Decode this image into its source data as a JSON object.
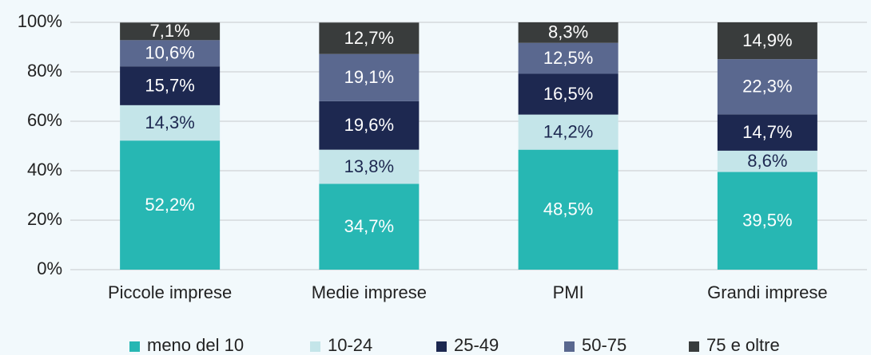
{
  "chart_data": {
    "type": "stacked_bar",
    "categories": [
      "Piccole imprese",
      "Medie imprese",
      "PMI",
      "Grandi imprese"
    ],
    "series": [
      {
        "name": "meno del 10",
        "color": "#27b7b3",
        "values": [
          52.2,
          34.7,
          48.5,
          39.5
        ],
        "value_labels": [
          "52,2%",
          "34,7%",
          "48,5%",
          "39,5%"
        ]
      },
      {
        "name": "10-24",
        "color": "#c4e5e9",
        "values": [
          14.3,
          13.8,
          14.2,
          8.6
        ],
        "value_labels": [
          "14,3%",
          "13,8%",
          "14,2%",
          "8,6%"
        ]
      },
      {
        "name": "25-49",
        "color": "#1d2850",
        "values": [
          15.7,
          19.6,
          16.5,
          14.7
        ],
        "value_labels": [
          "15,7%",
          "19,6%",
          "16,5%",
          "14,7%"
        ]
      },
      {
        "name": "50-75",
        "color": "#5a688f",
        "values": [
          10.6,
          19.1,
          12.5,
          22.3
        ],
        "value_labels": [
          "10,6%",
          "19,1%",
          "12,5%",
          "22,3%"
        ]
      },
      {
        "name": "75 e oltre",
        "color": "#393c3c",
        "values": [
          7.1,
          12.7,
          8.3,
          14.9
        ],
        "value_labels": [
          "7,1%",
          "12,7%",
          "8,3%",
          "14,9%"
        ]
      }
    ],
    "ylim": [
      0,
      100
    ],
    "yticks": [
      {
        "value": 0,
        "label": "0%"
      },
      {
        "value": 20,
        "label": "20%"
      },
      {
        "value": 40,
        "label": "40%"
      },
      {
        "value": 60,
        "label": "60%"
      },
      {
        "value": 80,
        "label": "80%"
      },
      {
        "value": 100,
        "label": "100%"
      }
    ],
    "grid": true,
    "legend": "bottom"
  }
}
